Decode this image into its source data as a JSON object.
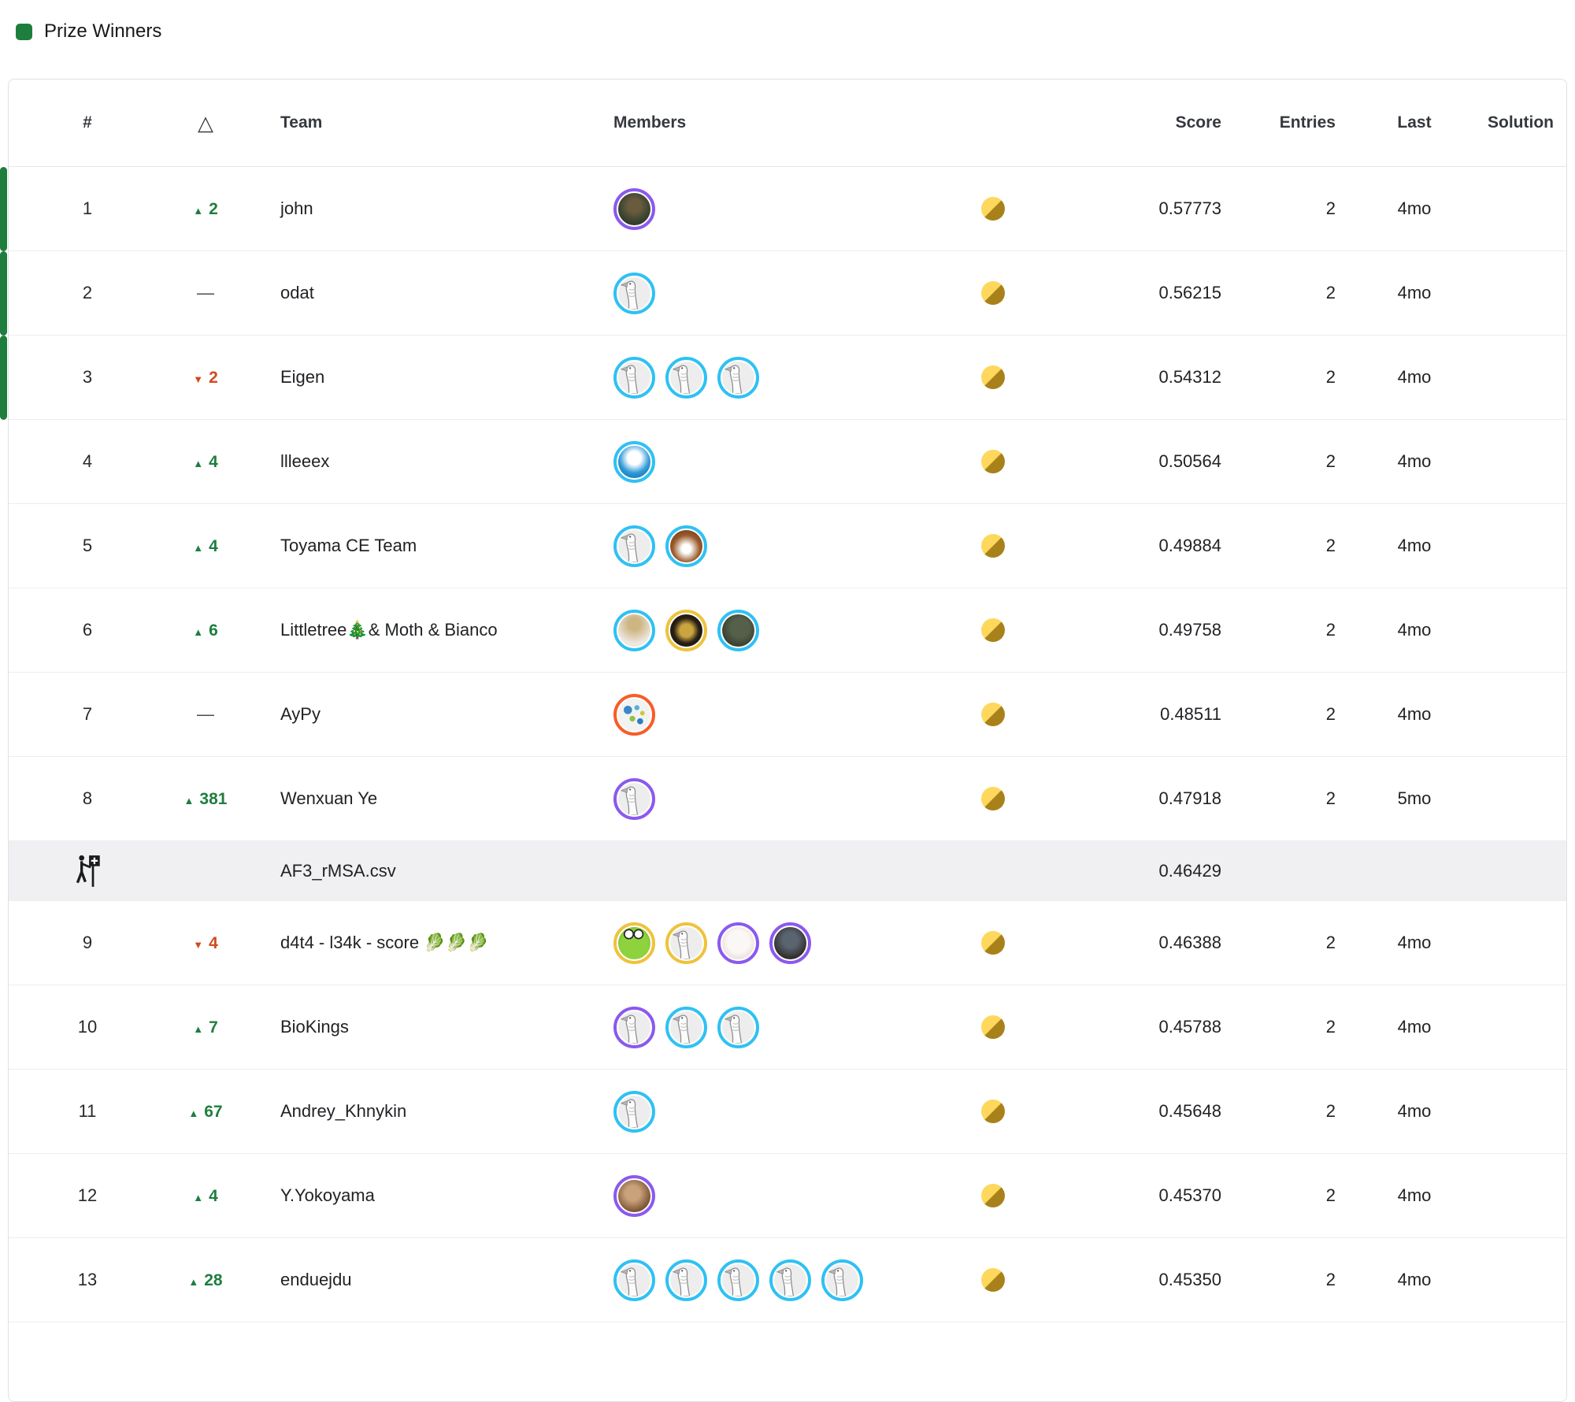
{
  "legend": {
    "label": "Prize Winners",
    "color": "#1e7e3e"
  },
  "table": {
    "headers": {
      "rank": "#",
      "delta": "△",
      "team": "Team",
      "members": "Members",
      "medal": "",
      "score": "Score",
      "entries": "Entries",
      "last": "Last",
      "solution": "Solution"
    },
    "rows": [
      {
        "type": "entry",
        "prize": true,
        "rank": "1",
        "delta": "up",
        "delta_val": "2",
        "team": "john",
        "members": [
          {
            "ring": "purple",
            "img": "photo1"
          }
        ],
        "medal": "gold",
        "score": "0.57773",
        "entries": "2",
        "last": "4mo",
        "solution": ""
      },
      {
        "type": "entry",
        "prize": true,
        "rank": "2",
        "delta": "none",
        "delta_val": "",
        "team": "odat",
        "members": [
          {
            "ring": "blue",
            "img": "goose"
          }
        ],
        "medal": "gold",
        "score": "0.56215",
        "entries": "2",
        "last": "4mo",
        "solution": ""
      },
      {
        "type": "entry",
        "prize": true,
        "rank": "3",
        "delta": "down",
        "delta_val": "2",
        "team": "Eigen",
        "members": [
          {
            "ring": "blue",
            "img": "goose"
          },
          {
            "ring": "blue",
            "img": "goose"
          },
          {
            "ring": "blue",
            "img": "goose"
          }
        ],
        "medal": "gold",
        "score": "0.54312",
        "entries": "2",
        "last": "4mo",
        "solution": ""
      },
      {
        "type": "entry",
        "prize": false,
        "rank": "4",
        "delta": "up",
        "delta_val": "4",
        "team": "llleeex",
        "members": [
          {
            "ring": "blue",
            "img": "doraemon"
          }
        ],
        "medal": "gold",
        "score": "0.50564",
        "entries": "2",
        "last": "4mo",
        "solution": ""
      },
      {
        "type": "entry",
        "prize": false,
        "rank": "5",
        "delta": "up",
        "delta_val": "4",
        "team": "Toyama CE Team",
        "members": [
          {
            "ring": "blue",
            "img": "goose"
          },
          {
            "ring": "blue",
            "img": "dog"
          }
        ],
        "medal": "gold",
        "score": "0.49884",
        "entries": "2",
        "last": "4mo",
        "solution": ""
      },
      {
        "type": "entry",
        "prize": false,
        "rank": "6",
        "delta": "up",
        "delta_val": "6",
        "team": "Littletree🎄& Moth & Bianco",
        "members": [
          {
            "ring": "blue",
            "img": "anime"
          },
          {
            "ring": "yellow",
            "img": "moth"
          },
          {
            "ring": "blue",
            "img": "darkphoto"
          }
        ],
        "medal": "gold",
        "score": "0.49758",
        "entries": "2",
        "last": "4mo",
        "solution": ""
      },
      {
        "type": "entry",
        "prize": false,
        "rank": "7",
        "delta": "none",
        "delta_val": "",
        "team": "AyPy",
        "members": [
          {
            "ring": "orange",
            "img": "abstract"
          }
        ],
        "medal": "gold",
        "score": "0.48511",
        "entries": "2",
        "last": "4mo",
        "solution": ""
      },
      {
        "type": "entry",
        "prize": false,
        "rank": "8",
        "delta": "up",
        "delta_val": "381",
        "team": "Wenxuan Ye",
        "members": [
          {
            "ring": "purple",
            "img": "goose"
          }
        ],
        "medal": "gold",
        "score": "0.47918",
        "entries": "2",
        "last": "5mo",
        "solution": ""
      },
      {
        "type": "benchmark",
        "rank": "",
        "delta": "",
        "delta_val": "",
        "team": "AF3_rMSA.csv",
        "members": [],
        "medal": "",
        "score": "0.46429",
        "entries": "",
        "last": "",
        "solution": ""
      },
      {
        "type": "entry",
        "prize": false,
        "rank": "9",
        "delta": "down",
        "delta_val": "4",
        "team": "d4t4 - l34k - score 🥬🥬🥬",
        "members": [
          {
            "ring": "yellow",
            "img": "frog"
          },
          {
            "ring": "yellow",
            "img": "goose"
          },
          {
            "ring": "purple",
            "img": "cat"
          },
          {
            "ring": "purple",
            "img": "man"
          }
        ],
        "medal": "gold",
        "score": "0.46388",
        "entries": "2",
        "last": "4mo",
        "solution": ""
      },
      {
        "type": "entry",
        "prize": false,
        "rank": "10",
        "delta": "up",
        "delta_val": "7",
        "team": "BioKings",
        "members": [
          {
            "ring": "purple",
            "img": "goose"
          },
          {
            "ring": "blue",
            "img": "goose"
          },
          {
            "ring": "blue",
            "img": "goose"
          }
        ],
        "medal": "gold",
        "score": "0.45788",
        "entries": "2",
        "last": "4mo",
        "solution": ""
      },
      {
        "type": "entry",
        "prize": false,
        "rank": "11",
        "delta": "up",
        "delta_val": "67",
        "team": "Andrey_Khnykin",
        "members": [
          {
            "ring": "blue",
            "img": "goose"
          }
        ],
        "medal": "gold",
        "score": "0.45648",
        "entries": "2",
        "last": "4mo",
        "solution": ""
      },
      {
        "type": "entry",
        "prize": false,
        "rank": "12",
        "delta": "up",
        "delta_val": "4",
        "team": "Y.Yokoyama",
        "members": [
          {
            "ring": "purple",
            "img": "boy"
          }
        ],
        "medal": "gold",
        "score": "0.45370",
        "entries": "2",
        "last": "4mo",
        "solution": ""
      },
      {
        "type": "entry",
        "prize": false,
        "rank": "13",
        "delta": "up",
        "delta_val": "28",
        "team": "enduejdu",
        "members": [
          {
            "ring": "blue",
            "img": "goose"
          },
          {
            "ring": "blue",
            "img": "goose"
          },
          {
            "ring": "blue",
            "img": "goose"
          },
          {
            "ring": "blue",
            "img": "goose"
          },
          {
            "ring": "blue",
            "img": "goose"
          }
        ],
        "medal": "gold",
        "score": "0.45350",
        "entries": "2",
        "last": "4mo",
        "solution": ""
      }
    ]
  },
  "colors": {
    "prize_green": "#1e7e3e",
    "delta_up": "#1e7e3e",
    "delta_down": "#d2491e",
    "medal_gold_light": "#fdd85d",
    "medal_gold_dark": "#a8811a",
    "ring_blue": "#2fc1f3",
    "ring_purple": "#8b59ef",
    "ring_yellow": "#eec33c",
    "ring_orange": "#f85c28",
    "benchmark_row_bg": "#f0f0f2"
  }
}
